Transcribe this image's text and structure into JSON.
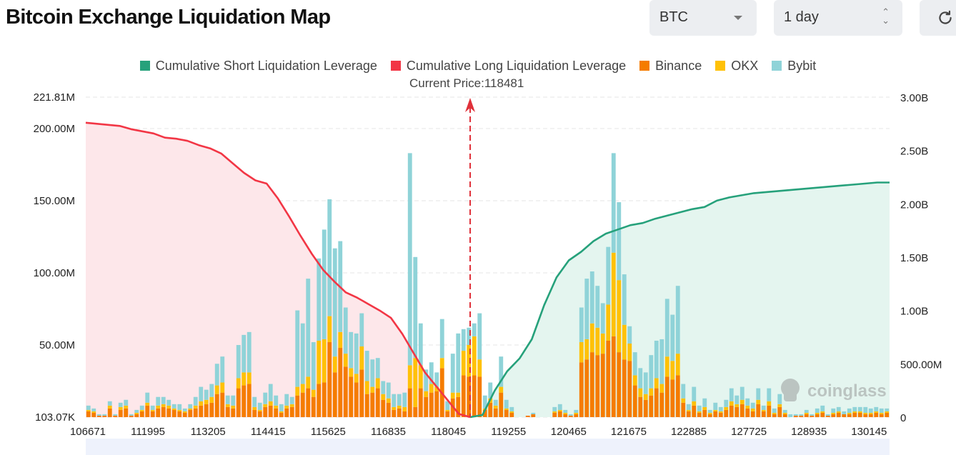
{
  "header": {
    "title": "Bitcoin Exchange Liquidation Map",
    "coin_select": "BTC",
    "range_select": "1 day"
  },
  "colors": {
    "short": "#26a17b",
    "long": "#f23645",
    "binance": "#f57c00",
    "okx": "#ffc107",
    "bybit": "#8fd3d8"
  },
  "icons": {
    "coin_caret": "chevron-down-icon",
    "range_stepper": "updown-icon",
    "refresh": "refresh-icon"
  },
  "watermark": "coinglass",
  "chart_data": {
    "type": "bar",
    "legend": [
      "Cumulative Short Liquidation Leverage",
      "Cumulative Long Liquidation Leverage",
      "Binance",
      "OKX",
      "Bybit"
    ],
    "current_price_label": "Current Price:118481",
    "current_price": 118481,
    "legend_position": "top",
    "grid": true,
    "y_left_ticks": [
      "221.81M",
      "200.00M",
      "150.00M",
      "100.00M",
      "50.00M",
      "103.07K"
    ],
    "y_right_ticks": [
      "3.00B",
      "2.50B",
      "2.00B",
      "1.50B",
      "1.00B",
      "500.00M",
      "0"
    ],
    "y_left_range": [
      0,
      221.81
    ],
    "y_right_range": [
      0,
      3.0
    ],
    "x_ticks": [
      "106671",
      "111995",
      "113205",
      "114415",
      "115625",
      "116835",
      "118045",
      "119255",
      "120465",
      "121675",
      "122885",
      "127725",
      "128935",
      "130145"
    ],
    "series": [
      {
        "name": "Binance",
        "values": [
          4,
          3,
          1,
          1,
          6,
          1,
          5,
          6,
          1,
          2,
          4,
          8,
          4,
          6,
          7,
          6,
          5,
          4,
          3,
          5,
          6,
          8,
          9,
          10,
          16,
          17,
          7,
          6,
          20,
          22,
          23,
          5,
          4,
          7,
          8,
          6,
          3,
          6,
          7,
          15,
          17,
          20,
          14,
          23,
          24,
          52,
          31,
          48,
          35,
          28,
          24,
          33,
          16,
          17,
          20,
          12,
          10,
          5,
          6,
          4,
          20,
          7,
          20,
          14,
          17,
          18,
          34,
          4,
          13,
          14,
          29,
          28,
          29,
          28,
          5,
          10,
          6,
          17,
          5,
          3,
          0,
          0,
          1,
          2,
          0,
          0,
          0,
          3,
          4,
          2,
          1,
          2,
          38,
          40,
          45,
          43,
          44,
          53,
          56,
          45,
          40,
          39,
          22,
          14,
          12,
          15,
          20,
          17,
          28,
          26,
          29,
          10,
          4,
          8,
          3,
          5,
          2,
          4,
          3,
          5,
          8,
          7,
          9,
          6,
          4,
          9,
          4,
          8,
          2,
          7,
          2,
          0,
          1,
          1,
          2,
          1,
          2,
          3,
          1,
          2,
          3,
          2,
          2,
          3,
          3,
          2,
          2,
          3,
          2,
          3
        ],
        "color": "#f57c00"
      },
      {
        "name": "OKX",
        "values": [
          1,
          1,
          0,
          0,
          2,
          0,
          2,
          2,
          0,
          1,
          1,
          2,
          1,
          2,
          2,
          2,
          1,
          1,
          1,
          1,
          2,
          3,
          3,
          4,
          6,
          7,
          2,
          2,
          7,
          9,
          8,
          2,
          1,
          2,
          3,
          2,
          1,
          2,
          2,
          6,
          6,
          8,
          5,
          30,
          30,
          18,
          11,
          11,
          9,
          6,
          6,
          16,
          9,
          4,
          7,
          4,
          3,
          2,
          2,
          3,
          16,
          34,
          16,
          4,
          6,
          3,
          7,
          1,
          4,
          3,
          17,
          22,
          27,
          12,
          1,
          3,
          2,
          4,
          1,
          1,
          0,
          0,
          0,
          0,
          0,
          0,
          0,
          1,
          1,
          1,
          0,
          1,
          14,
          14,
          20,
          19,
          14,
          25,
          58,
          50,
          24,
          12,
          7,
          6,
          4,
          5,
          7,
          6,
          14,
          13,
          15,
          3,
          1,
          3,
          1,
          2,
          1,
          1,
          1,
          2,
          3,
          2,
          3,
          2,
          2,
          3,
          1,
          3,
          1,
          2,
          1,
          0,
          0,
          0,
          1,
          0,
          1,
          1,
          0,
          1,
          1,
          0,
          1,
          1,
          1,
          1,
          1,
          1,
          1,
          1
        ],
        "color": "#ffc107"
      },
      {
        "name": "Bybit",
        "values": [
          3,
          2,
          1,
          1,
          3,
          1,
          3,
          4,
          1,
          2,
          3,
          7,
          3,
          6,
          5,
          4,
          3,
          4,
          2,
          3,
          6,
          10,
          7,
          9,
          15,
          18,
          6,
          7,
          23,
          26,
          28,
          7,
          5,
          8,
          12,
          7,
          5,
          8,
          5,
          53,
          42,
          68,
          33,
          57,
          76,
          81,
          75,
          63,
          32,
          25,
          28,
          23,
          21,
          19,
          14,
          9,
          11,
          9,
          8,
          10,
          147,
          70,
          29,
          15,
          15,
          10,
          27,
          6,
          27,
          41,
          15,
          12,
          9,
          32,
          9,
          11,
          4,
          21,
          6,
          3,
          0,
          0,
          0,
          1,
          0,
          0,
          0,
          3,
          4,
          2,
          1,
          2,
          24,
          42,
          36,
          29,
          21,
          40,
          69,
          54,
          35,
          12,
          16,
          14,
          15,
          23,
          26,
          31,
          40,
          32,
          47,
          10,
          4,
          10,
          4,
          6,
          2,
          5,
          3,
          5,
          9,
          6,
          9,
          5,
          4,
          8,
          3,
          9,
          3,
          7,
          2,
          2,
          1,
          1,
          2,
          1,
          3,
          4,
          1,
          3,
          3,
          2,
          3,
          3,
          3,
          4,
          3,
          3,
          3,
          2
        ],
        "color": "#8fd3d8"
      },
      {
        "name": "Cumulative Long Liquidation Leverage",
        "x_from": 106671,
        "x_to": 118481,
        "y_billions": [
          2.76,
          2.75,
          2.74,
          2.73,
          2.7,
          2.68,
          2.66,
          2.62,
          2.61,
          2.59,
          2.55,
          2.52,
          2.47,
          2.38,
          2.29,
          2.22,
          2.19,
          2.05,
          1.88,
          1.7,
          1.53,
          1.38,
          1.27,
          1.17,
          1.12,
          1.06,
          1.0,
          0.93,
          0.78,
          0.6,
          0.42,
          0.29,
          0.16,
          0.03,
          0.0
        ],
        "color": "#f23645"
      },
      {
        "name": "Cumulative Short Liquidation Leverage",
        "x_from": 118481,
        "x_to": 130145,
        "y_billions": [
          0.0,
          0.02,
          0.25,
          0.43,
          0.55,
          0.73,
          1.05,
          1.31,
          1.47,
          1.55,
          1.65,
          1.72,
          1.76,
          1.8,
          1.82,
          1.86,
          1.89,
          1.92,
          1.95,
          1.97,
          2.03,
          2.06,
          2.08,
          2.1,
          2.11,
          2.12,
          2.13,
          2.14,
          2.15,
          2.16,
          2.17,
          2.18,
          2.19,
          2.2,
          2.2
        ],
        "color": "#26a17b"
      }
    ]
  }
}
